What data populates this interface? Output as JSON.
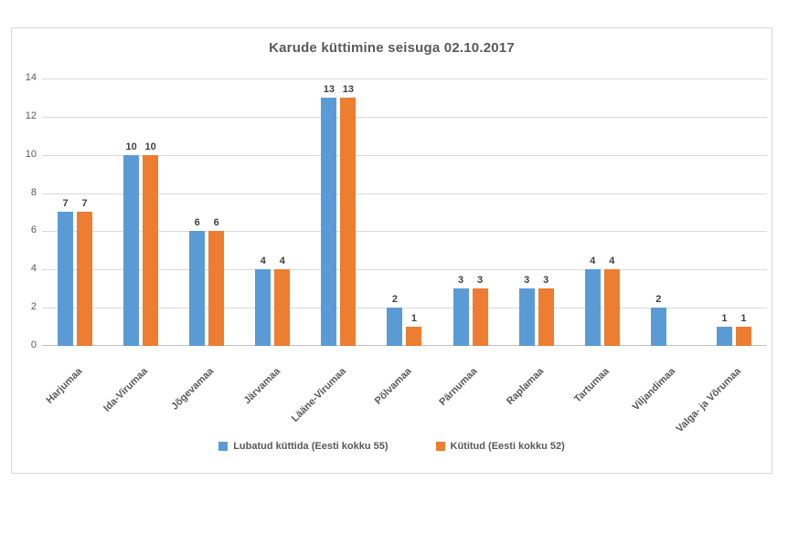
{
  "chart_data": {
    "type": "bar",
    "title": "Karude küttimine seisuga 02.10.2017",
    "categories": [
      "Harjumaa",
      "Ida-Virumaa",
      "Jõgevamaa",
      "Järvamaa",
      "Lääne-Virumaa",
      "Põlvamaa",
      "Pärnumaa",
      "Raplamaa",
      "Tartumaa",
      "Viljandimaa",
      "Valga- ja Võrumaa"
    ],
    "series": [
      {
        "name": "Lubatud küttida (Eesti kokku 55)",
        "color": "#5b9bd5",
        "values": [
          7,
          10,
          6,
          4,
          13,
          2,
          3,
          3,
          4,
          2,
          1
        ]
      },
      {
        "name": "Kütitud (Eesti kokku 52)",
        "color": "#ed7d31",
        "values": [
          7,
          10,
          6,
          4,
          13,
          1,
          3,
          3,
          4,
          null,
          1
        ]
      }
    ],
    "ylim": [
      0,
      14
    ],
    "yticks": [
      0,
      2,
      4,
      6,
      8,
      10,
      12,
      14
    ],
    "grid": true,
    "data_labels": true,
    "legend_position": "bottom",
    "colors": {
      "title_text": "#595959",
      "axis_text": "#595959",
      "data_label_text": "#404040",
      "gridline": "#d9d9d9",
      "frame_border": "#d6d6d6"
    }
  }
}
